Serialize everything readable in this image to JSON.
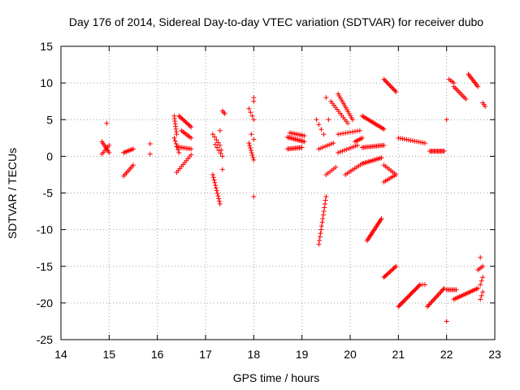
{
  "chart_data": {
    "type": "scatter",
    "title": "Day 176 of 2014, Sidereal Day-to-day VTEC variation (SDTVAR) for receiver dubo",
    "xlabel": "GPS time / hours",
    "ylabel": "SDTVAR / TECUs",
    "xlim": [
      14,
      23
    ],
    "ylim": [
      -25,
      15
    ],
    "xticks": [
      14,
      15,
      16,
      17,
      18,
      19,
      20,
      21,
      22,
      23
    ],
    "yticks": [
      -25,
      -20,
      -15,
      -10,
      -5,
      0,
      5,
      10,
      15
    ],
    "grid": true,
    "marker": "+",
    "color": "#ff0000",
    "segments": [
      {
        "x": [
          14.85,
          15.0
        ],
        "y": [
          2.0,
          0.5
        ],
        "n": 8
      },
      {
        "x": [
          14.85,
          15.0
        ],
        "y": [
          0.3,
          1.5
        ],
        "n": 6
      },
      {
        "x": [
          14.95,
          15.0
        ],
        "y": [
          4.5,
          4.5
        ],
        "n": 1
      },
      {
        "x": [
          15.3,
          15.5
        ],
        "y": [
          0.5,
          1.0
        ],
        "n": 8
      },
      {
        "x": [
          15.3,
          15.5
        ],
        "y": [
          -2.7,
          -1.2
        ],
        "n": 8
      },
      {
        "x": [
          15.85,
          15.85
        ],
        "y": [
          1.7,
          0.3
        ],
        "n": 2
      },
      {
        "x": [
          16.35,
          16.4
        ],
        "y": [
          5.5,
          3.0
        ],
        "n": 8
      },
      {
        "x": [
          16.35,
          16.45
        ],
        "y": [
          2.5,
          0.5
        ],
        "n": 6
      },
      {
        "x": [
          16.45,
          16.7
        ],
        "y": [
          5.5,
          4.0
        ],
        "n": 12
      },
      {
        "x": [
          16.5,
          16.7
        ],
        "y": [
          3.5,
          2.5
        ],
        "n": 8
      },
      {
        "x": [
          16.4,
          16.7
        ],
        "y": [
          1.3,
          1.0
        ],
        "n": 10
      },
      {
        "x": [
          16.4,
          16.7
        ],
        "y": [
          -2.2,
          0.2
        ],
        "n": 10
      },
      {
        "x": [
          17.15,
          17.3
        ],
        "y": [
          3.0,
          1.5
        ],
        "n": 5
      },
      {
        "x": [
          17.15,
          17.3
        ],
        "y": [
          -2.5,
          -6.5
        ],
        "n": 12
      },
      {
        "x": [
          17.2,
          17.35
        ],
        "y": [
          1.6,
          0.0
        ],
        "n": 5
      },
      {
        "x": [
          17.35,
          17.4
        ],
        "y": [
          6.2,
          5.8
        ],
        "n": 3
      },
      {
        "x": [
          17.3,
          17.35
        ],
        "y": [
          3.5,
          -1.8
        ],
        "n": 3
      },
      {
        "x": [
          17.9,
          18.0
        ],
        "y": [
          6.5,
          5.0
        ],
        "n": 4
      },
      {
        "x": [
          17.9,
          18.0
        ],
        "y": [
          1.8,
          -0.5
        ],
        "n": 8
      },
      {
        "x": [
          17.95,
          18.0
        ],
        "y": [
          3.0,
          2.3
        ],
        "n": 2
      },
      {
        "x": [
          18.0,
          18.0
        ],
        "y": [
          8.0,
          7.5
        ],
        "n": 2
      },
      {
        "x": [
          18.0,
          18.0
        ],
        "y": [
          -5.5,
          -5.5
        ],
        "n": 1
      },
      {
        "x": [
          18.7,
          19.0
        ],
        "y": [
          1.0,
          1.2
        ],
        "n": 12
      },
      {
        "x": [
          18.7,
          19.05
        ],
        "y": [
          2.6,
          2.0
        ],
        "n": 14
      },
      {
        "x": [
          18.75,
          19.05
        ],
        "y": [
          3.2,
          2.8
        ],
        "n": 10
      },
      {
        "x": [
          19.35,
          19.5
        ],
        "y": [
          -12.0,
          -5.5
        ],
        "n": 14
      },
      {
        "x": [
          19.3,
          19.45
        ],
        "y": [
          5.0,
          3.0
        ],
        "n": 4
      },
      {
        "x": [
          19.35,
          19.65
        ],
        "y": [
          1.0,
          1.8
        ],
        "n": 8
      },
      {
        "x": [
          19.5,
          19.7
        ],
        "y": [
          -2.5,
          -1.5
        ],
        "n": 6
      },
      {
        "x": [
          19.5,
          19.55
        ],
        "y": [
          8.0,
          5.0
        ],
        "n": 2
      },
      {
        "x": [
          19.6,
          19.95
        ],
        "y": [
          7.5,
          4.5
        ],
        "n": 12
      },
      {
        "x": [
          19.75,
          20.05
        ],
        "y": [
          8.5,
          5.0
        ],
        "n": 14
      },
      {
        "x": [
          19.75,
          20.2
        ],
        "y": [
          3.0,
          3.5
        ],
        "n": 10
      },
      {
        "x": [
          19.75,
          20.15
        ],
        "y": [
          0.5,
          1.5
        ],
        "n": 10
      },
      {
        "x": [
          19.9,
          20.25
        ],
        "y": [
          -2.5,
          -1.0
        ],
        "n": 10
      },
      {
        "x": [
          20.1,
          20.25
        ],
        "y": [
          2.0,
          2.5
        ],
        "n": 6
      },
      {
        "x": [
          20.25,
          20.7
        ],
        "y": [
          5.5,
          3.7
        ],
        "n": 18
      },
      {
        "x": [
          20.25,
          20.65
        ],
        "y": [
          -1.0,
          -0.2
        ],
        "n": 14
      },
      {
        "x": [
          20.25,
          20.7
        ],
        "y": [
          1.2,
          1.5
        ],
        "n": 16
      },
      {
        "x": [
          20.35,
          20.65
        ],
        "y": [
          -11.5,
          -8.5
        ],
        "n": 18
      },
      {
        "x": [
          20.7,
          20.95
        ],
        "y": [
          10.5,
          8.8
        ],
        "n": 12
      },
      {
        "x": [
          20.7,
          20.95
        ],
        "y": [
          -1.2,
          -2.5
        ],
        "n": 8
      },
      {
        "x": [
          20.7,
          20.95
        ],
        "y": [
          -3.5,
          -2.5
        ],
        "n": 8
      },
      {
        "x": [
          20.7,
          20.95
        ],
        "y": [
          -16.5,
          -15.0
        ],
        "n": 12
      },
      {
        "x": [
          21.0,
          21.45
        ],
        "y": [
          -20.5,
          -17.5
        ],
        "n": 24
      },
      {
        "x": [
          21.5,
          21.55
        ],
        "y": [
          -17.5,
          -17.5
        ],
        "n": 2
      },
      {
        "x": [
          21.0,
          21.55
        ],
        "y": [
          2.5,
          1.8
        ],
        "n": 14
      },
      {
        "x": [
          21.65,
          21.95
        ],
        "y": [
          0.7,
          0.7
        ],
        "n": 14
      },
      {
        "x": [
          21.6,
          21.95
        ],
        "y": [
          -20.5,
          -18.0
        ],
        "n": 16
      },
      {
        "x": [
          22.0,
          22.0
        ],
        "y": [
          5.0,
          5.0
        ],
        "n": 1
      },
      {
        "x": [
          22.0,
          22.0
        ],
        "y": [
          -22.5,
          -22.5
        ],
        "n": 1
      },
      {
        "x": [
          22.0,
          22.2
        ],
        "y": [
          -18.2,
          -18.2
        ],
        "n": 8
      },
      {
        "x": [
          22.05,
          22.15
        ],
        "y": [
          10.5,
          10.0
        ],
        "n": 4
      },
      {
        "x": [
          22.15,
          22.4
        ],
        "y": [
          9.5,
          7.8
        ],
        "n": 10
      },
      {
        "x": [
          22.15,
          22.65
        ],
        "y": [
          -19.5,
          -18.0
        ],
        "n": 18
      },
      {
        "x": [
          22.45,
          22.65
        ],
        "y": [
          11.2,
          9.5
        ],
        "n": 10
      },
      {
        "x": [
          22.65,
          22.75
        ],
        "y": [
          -15.5,
          -15.0
        ],
        "n": 4
      },
      {
        "x": [
          22.7,
          22.75
        ],
        "y": [
          -13.8,
          -13.8
        ],
        "n": 1
      },
      {
        "x": [
          22.7,
          22.75
        ],
        "y": [
          -17.5,
          -16.5
        ],
        "n": 3
      },
      {
        "x": [
          22.7,
          22.75
        ],
        "y": [
          -19.5,
          -18.5
        ],
        "n": 3
      },
      {
        "x": [
          22.75,
          22.8
        ],
        "y": [
          7.3,
          6.8
        ],
        "n": 3
      }
    ]
  }
}
